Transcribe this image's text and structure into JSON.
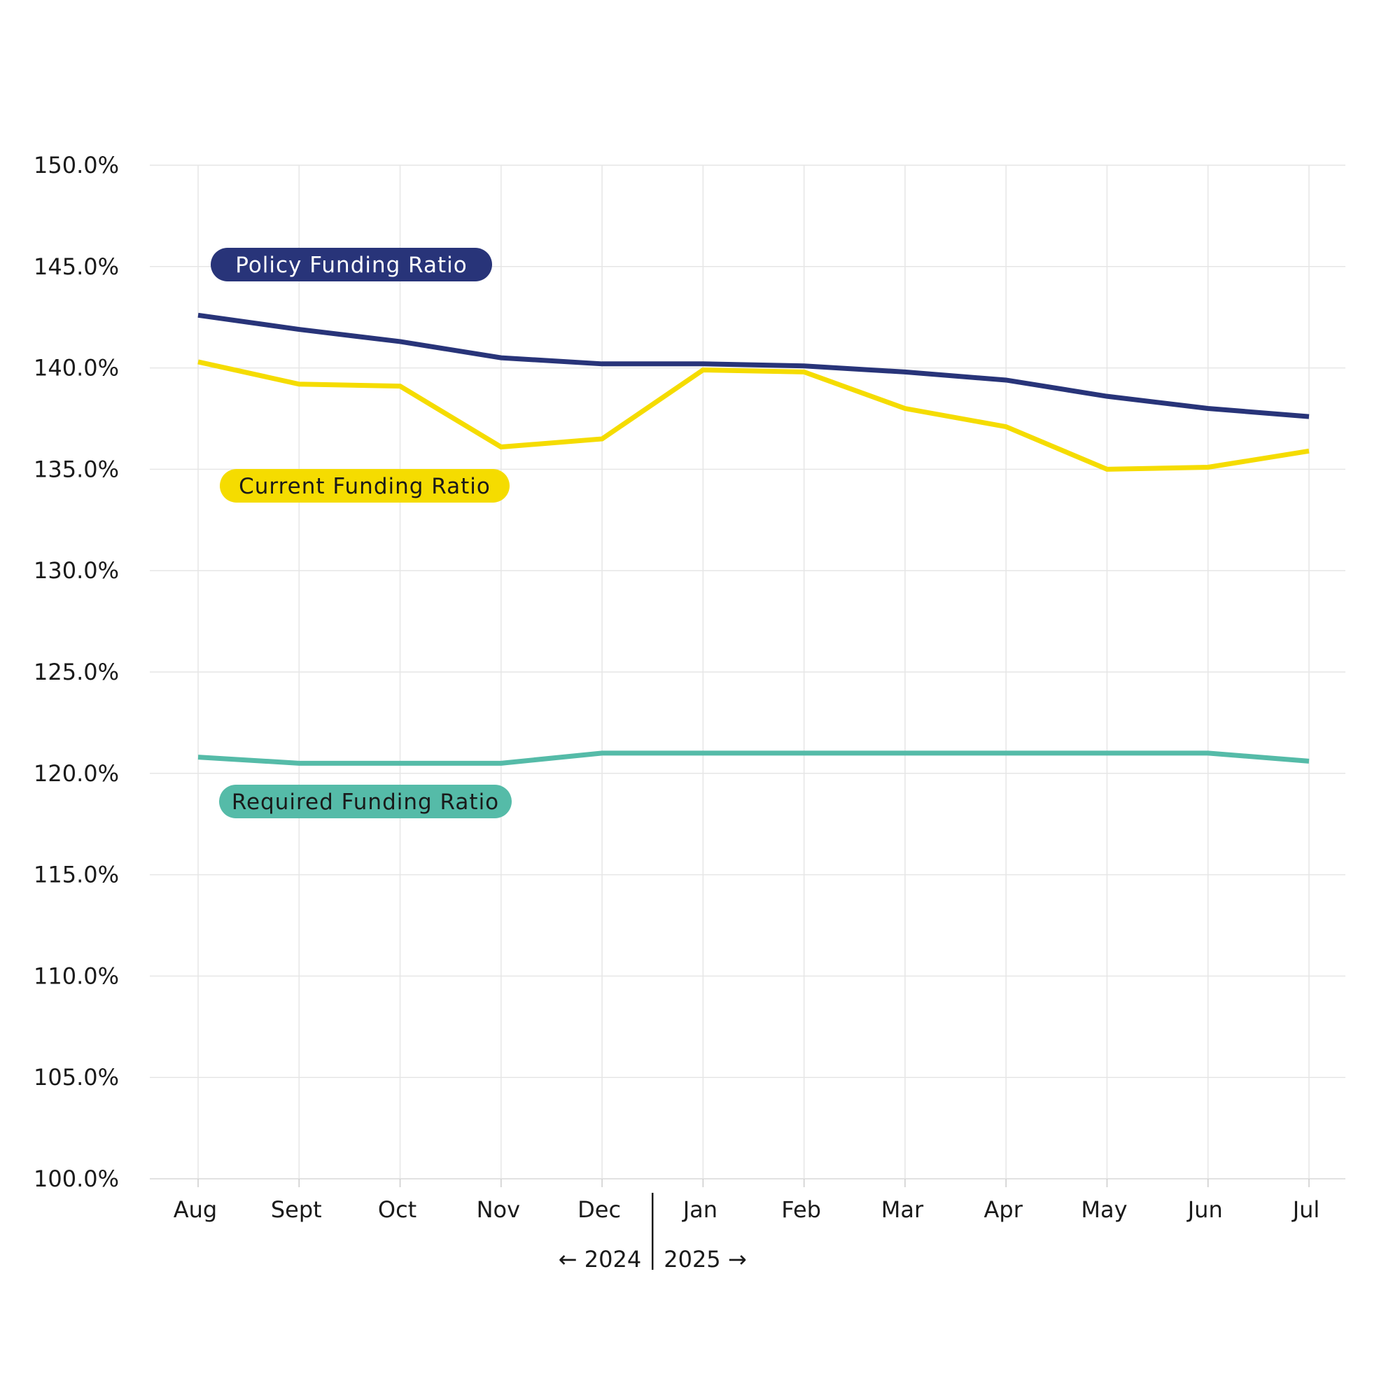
{
  "chart_data": {
    "type": "line",
    "title": "",
    "xlabel": "",
    "ylabel": "",
    "categories": [
      "Aug",
      "Sept",
      "Oct",
      "Nov",
      "Dec",
      "Jan",
      "Feb",
      "Mar",
      "Apr",
      "May",
      "Jun",
      "Jul"
    ],
    "ylim": [
      100,
      150
    ],
    "yticks": [
      "100.0%",
      "105.0%",
      "110.0%",
      "115.0%",
      "120.0%",
      "125.0%",
      "130.0%",
      "135.0%",
      "140.0%",
      "145.0%",
      "150.0%"
    ],
    "year_labels": {
      "left": "← 2024",
      "right": "2025 →"
    },
    "grid": true,
    "series": [
      {
        "name": "Policy Funding Ratio",
        "color": "#283479",
        "label_text_color": "#ffffff",
        "values": [
          142.6,
          141.9,
          141.3,
          140.5,
          140.2,
          140.2,
          140.1,
          139.8,
          139.4,
          138.6,
          138.0,
          137.6
        ]
      },
      {
        "name": "Current Funding Ratio",
        "color": "#f5dc00",
        "label_text_color": "#1a1a1a",
        "values": [
          140.3,
          139.2,
          139.1,
          136.1,
          136.5,
          139.9,
          139.8,
          138.0,
          137.1,
          135.0,
          135.1,
          135.9
        ]
      },
      {
        "name": "Required Funding Ratio",
        "color": "#55bba8",
        "label_text_color": "#1a1a1a",
        "values": [
          120.8,
          120.5,
          120.5,
          120.5,
          121.0,
          121.0,
          121.0,
          121.0,
          121.0,
          121.0,
          121.0,
          120.6
        ]
      }
    ]
  }
}
